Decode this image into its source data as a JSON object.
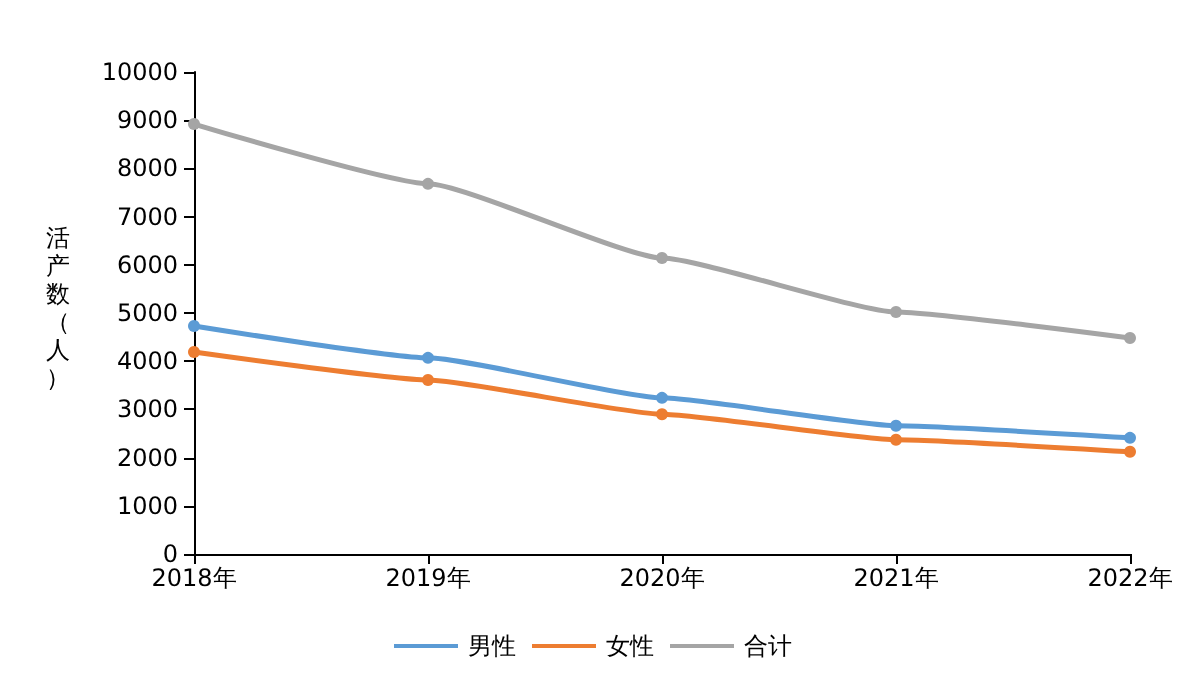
{
  "chart_data": {
    "type": "line",
    "ylabel": "活产数（人）",
    "categories": [
      "2018年",
      "2019年",
      "2020年",
      "2021年",
      "2022年"
    ],
    "series": [
      {
        "name": "男性",
        "color": "#5b9bd5",
        "values": [
          4730,
          4070,
          3240,
          2660,
          2410
        ]
      },
      {
        "name": "女性",
        "color": "#ed7d31",
        "values": [
          4190,
          3610,
          2900,
          2370,
          2120
        ]
      },
      {
        "name": "合计",
        "color": "#a5a5a5",
        "values": [
          8920,
          7680,
          6140,
          5020,
          4480
        ]
      }
    ],
    "ylim": [
      0,
      10000
    ],
    "yticks": [
      0,
      1000,
      2000,
      3000,
      4000,
      5000,
      6000,
      7000,
      8000,
      9000,
      10000
    ],
    "grid": false,
    "legend": "bottom",
    "marker": "circle",
    "line_style": "solid"
  }
}
